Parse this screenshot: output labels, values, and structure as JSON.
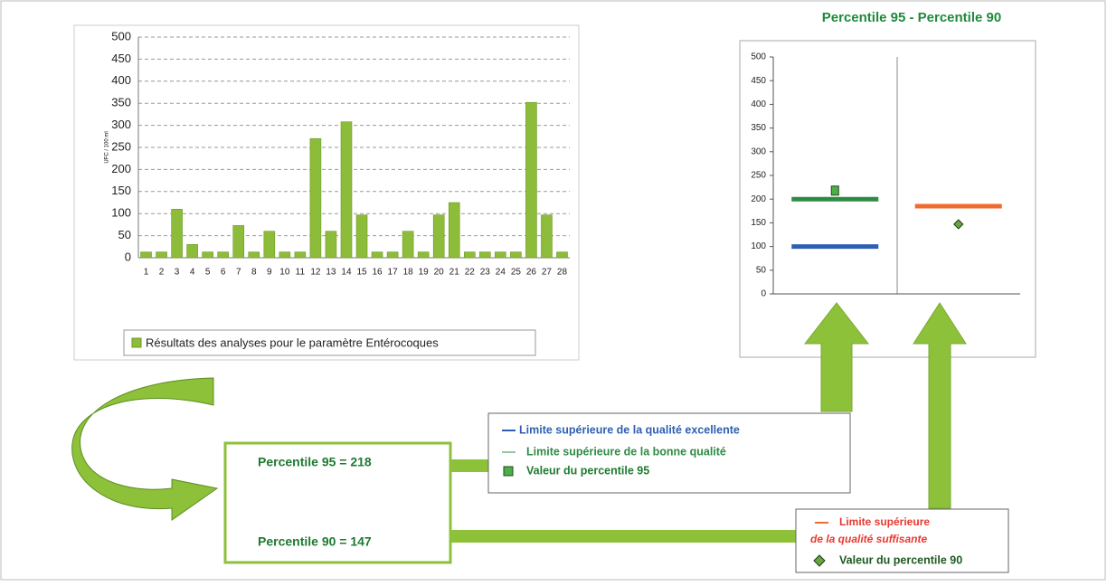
{
  "chart_data": [
    {
      "type": "bar",
      "y_label": "UFC / 100 ml",
      "categories": [
        "1",
        "2",
        "3",
        "4",
        "5",
        "6",
        "7",
        "8",
        "9",
        "10",
        "11",
        "12",
        "13",
        "14",
        "15",
        "16",
        "17",
        "18",
        "19",
        "20",
        "21",
        "22",
        "23",
        "24",
        "25",
        "26",
        "27",
        "28"
      ],
      "series": [
        {
          "name": "Résultats des analyses pour le paramètre Entérocoques",
          "color": "#8dbb3a",
          "values": [
            13,
            13,
            110,
            30,
            13,
            13,
            73,
            13,
            60,
            13,
            13,
            270,
            60,
            308,
            97,
            13,
            13,
            60,
            13,
            97,
            125,
            13,
            13,
            13,
            13,
            352,
            97,
            13
          ]
        }
      ],
      "ylim": [
        0,
        500
      ],
      "yticks": [
        0,
        50,
        100,
        150,
        200,
        250,
        300,
        350,
        400,
        450,
        500
      ],
      "grid": true
    },
    {
      "type": "marker",
      "title": "Percentile 95 -  Percentile 90",
      "categories": [
        null,
        null
      ],
      "series": [
        {
          "name": "Limite supérieure de la qualité excellente",
          "color": "#2f5fb3",
          "marker": "hline",
          "values": [
            100,
            null
          ]
        },
        {
          "name": "Limite supérieure de la bonne qualité",
          "color": "#2e8b45",
          "marker": "hline",
          "values": [
            200,
            null
          ]
        },
        {
          "name": "Valeur du percentile 95",
          "color": "#4fae47",
          "marker": "square",
          "values": [
            218,
            null
          ]
        },
        {
          "name": [
            "Limite supérieure",
            "de la qualité suffisante"
          ],
          "color": "#f26b2e",
          "marker": "hline",
          "values": [
            null,
            185
          ]
        },
        {
          "name": "Valeur du percentile 90",
          "color": "#6aa43c",
          "marker": "diamond",
          "values": [
            null,
            147
          ]
        }
      ],
      "ylim": [
        0,
        500
      ],
      "yticks": [
        0,
        50,
        100,
        150,
        200,
        250,
        300,
        350,
        400,
        450,
        500
      ],
      "grid": false
    }
  ],
  "results": [
    "Percentile 95 = 218",
    "Percentile 90 = 147"
  ]
}
